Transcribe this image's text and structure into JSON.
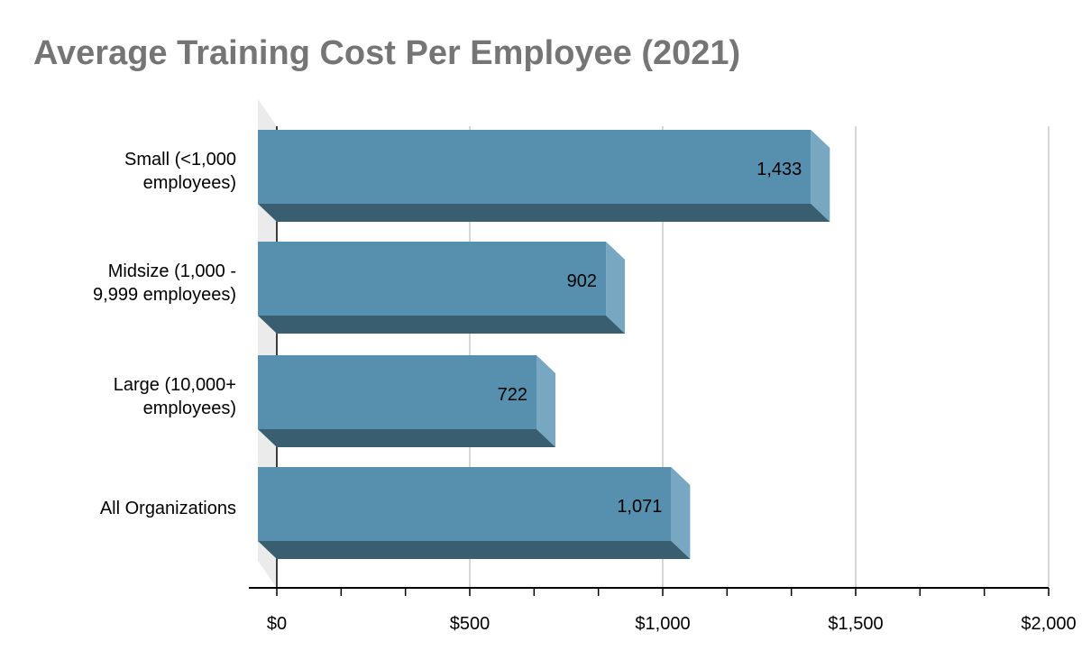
{
  "chart_data": {
    "type": "bar",
    "orientation": "horizontal",
    "style": "3d",
    "title": "Average Training Cost Per Employee (2021)",
    "xlabel": "",
    "ylabel": "",
    "categories": [
      [
        "Small (<1,000",
        "employees)"
      ],
      [
        "Midsize (1,000 -",
        "9,999 employees)"
      ],
      [
        "Large (10,000+",
        "employees)"
      ],
      [
        "All Organizations"
      ]
    ],
    "values": [
      1433,
      902,
      722,
      1071
    ],
    "value_labels": [
      "1,433",
      "902",
      "722",
      "1,071"
    ],
    "xlim": [
      0,
      2000
    ],
    "x_ticks": [
      {
        "value": 0,
        "label": "$0"
      },
      {
        "value": 500,
        "label": "$500"
      },
      {
        "value": 1000,
        "label": "$1,000"
      },
      {
        "value": 1500,
        "label": "$1,500"
      },
      {
        "value": 2000,
        "label": "$2,000"
      }
    ],
    "minor_ticks_per_major": 3,
    "grid": true,
    "legend": "none",
    "colors": {
      "bar_front": "#5790ae",
      "bar_side": "#77a7c1",
      "bar_bottom": "#385e6f",
      "back_wall": "#ebebeb",
      "grid": "#c8c8c8",
      "axis": "#000000",
      "title": "#757575",
      "text": "#000000"
    }
  }
}
